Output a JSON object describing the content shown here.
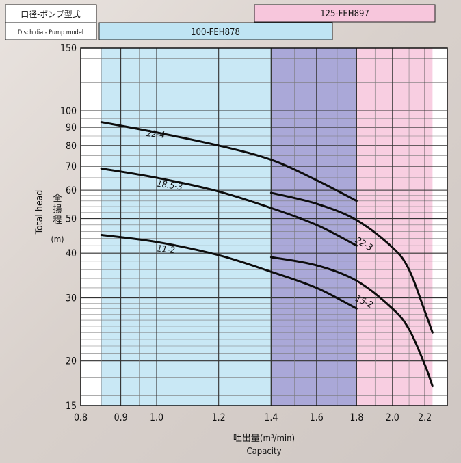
{
  "header": {
    "label_jp": "口径-ポンプ型式",
    "label_en": "Disch.dia.- Pump model",
    "model_a": "125-FEH897",
    "model_b": "100-FEH878"
  },
  "chart_data": {
    "type": "line",
    "x_scale": "log",
    "y_scale": "log",
    "xlim": [
      0.8,
      2.35
    ],
    "ylim": [
      15,
      150
    ],
    "x_ticks": [
      0.8,
      0.9,
      1.0,
      1.2,
      1.4,
      1.6,
      1.8,
      2.0,
      2.2
    ],
    "x_tick_labels": [
      "0.8",
      "0.9",
      "1.0",
      "1.2",
      "1.4",
      "1.6",
      "1.8",
      "2.0",
      "2.2"
    ],
    "y_ticks": [
      15,
      20,
      30,
      40,
      50,
      60,
      70,
      80,
      90,
      100,
      150
    ],
    "y_tick_labels": [
      "15",
      "20",
      "30",
      "40",
      "50",
      "60",
      "70",
      "80",
      "90",
      "100",
      "150"
    ],
    "ylabel_en": "Total head",
    "ylabel_jp": "全揚程",
    "ylabel_unit": "(m)",
    "xlabel_jp": "吐出量(m³/min)",
    "xlabel_en": "Capacity",
    "regions": [
      {
        "model": "100-FEH878",
        "x": [
          0.85,
          1.8
        ],
        "color": "#bfe4f3"
      },
      {
        "model": "125-FEH897",
        "x": [
          1.4,
          2.25
        ],
        "color": "#f7c6dc"
      }
    ],
    "series": [
      {
        "name": "22-4",
        "model": "100-FEH878",
        "x": [
          0.85,
          1.0,
          1.2,
          1.4,
          1.6,
          1.8
        ],
        "y": [
          93,
          87,
          80,
          73,
          64,
          56
        ]
      },
      {
        "name": "18.5-3",
        "model": "100-FEH878",
        "x": [
          0.85,
          1.0,
          1.2,
          1.4,
          1.6,
          1.8
        ],
        "y": [
          69,
          65,
          59.5,
          53.5,
          48,
          42
        ]
      },
      {
        "name": "11-2",
        "model": "100-FEH878",
        "x": [
          0.85,
          1.0,
          1.2,
          1.4,
          1.6,
          1.8
        ],
        "y": [
          45,
          43,
          39.5,
          35.5,
          32,
          28
        ]
      },
      {
        "name": "22-3",
        "model": "125-FEH897",
        "x": [
          1.4,
          1.6,
          1.8,
          2.0,
          2.1,
          2.2,
          2.25
        ],
        "y": [
          59,
          55,
          49.5,
          41.5,
          36,
          27.5,
          24
        ]
      },
      {
        "name": "15-2",
        "model": "125-FEH897",
        "x": [
          1.4,
          1.6,
          1.8,
          2.0,
          2.1,
          2.2,
          2.25
        ],
        "y": [
          39,
          37,
          33.5,
          28,
          24.5,
          19.5,
          17
        ]
      }
    ]
  }
}
